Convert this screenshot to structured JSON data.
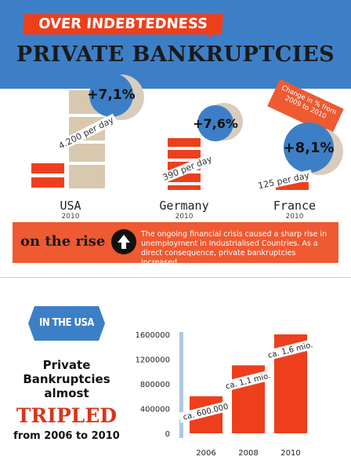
{
  "header": {
    "tag": "OVER INDEBTEDNESS",
    "title": "PRIVATE BANKRUPTCIES"
  },
  "countries": [
    {
      "name": "USA",
      "year": "2010",
      "per_day": "4.200 per day",
      "change": "+7,1%"
    },
    {
      "name": "Germany",
      "year": "2010",
      "per_day": "390 per day",
      "change": "+7,6%"
    },
    {
      "name": "France",
      "year": "2010",
      "per_day": "125 per day",
      "change": "+8,1%"
    }
  ],
  "change_label": "Change in % from 2009 to 2010",
  "rise": {
    "label": "on the rise",
    "text": "The ongoing financial crisis caused a sharp rise in unemployment in Industrialised Countries. As a direct consequence, private bankruptcies increased."
  },
  "usa_section": {
    "ribbon": "IN THE USA",
    "line1": "Private",
    "line2": "Bankruptcies",
    "line3": "almost",
    "tripled": "TRIPLED",
    "line4": "from 2006 to 2010"
  },
  "colors": {
    "blue": "#3d7fc6",
    "orange": "#ee3f1d",
    "beige": "#d8c8b0",
    "axis": "#aec8e6"
  },
  "chart_data": {
    "type": "bar",
    "categories": [
      "2006",
      "2008",
      "2010"
    ],
    "values": [
      600000,
      1100000,
      1600000
    ],
    "bar_labels": [
      "ca. 600.000",
      "ca. 1,1 mio.",
      "ca. 1,6 mio."
    ],
    "yticks": [
      "1600000",
      "1200000",
      "800000",
      "400000",
      "0"
    ],
    "ylim": [
      0,
      1600000
    ],
    "title": "",
    "xlabel": "",
    "ylabel": ""
  }
}
